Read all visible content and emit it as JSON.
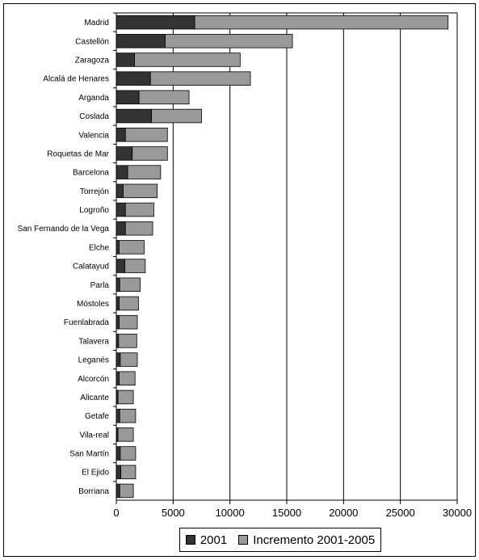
{
  "chart_data": {
    "type": "bar",
    "orientation": "horizontal",
    "stacked": true,
    "title": "",
    "xlabel": "",
    "ylabel": "",
    "xlim": [
      0,
      30000
    ],
    "x_ticks": [
      0,
      5000,
      10000,
      15000,
      20000,
      25000,
      30000
    ],
    "grid": "vertical major gridlines",
    "legend_position": "bottom",
    "categories": [
      "Madrid",
      "Castellón",
      "Zaragoza",
      "Alcalá de Henares",
      "Arganda",
      "Coslada",
      "Valencia",
      "Roquetas de Mar",
      "Barcelona",
      "Torrejón",
      "Logroño",
      "San Fernando de la Vega",
      "Elche",
      "Calatayud",
      "Parla",
      "Móstoles",
      "Fuenlabrada",
      "Talavera",
      "Leganés",
      "Alcorcón",
      "Alicante",
      "Getafe",
      "Vila-real",
      "San Martín",
      "El Ejido",
      "Borriana"
    ],
    "series": [
      {
        "name": "2001",
        "color": "#333333",
        "values": [
          6900,
          4300,
          1600,
          3000,
          2000,
          3100,
          800,
          1400,
          1000,
          600,
          800,
          800,
          250,
          750,
          300,
          250,
          250,
          200,
          350,
          250,
          150,
          300,
          150,
          350,
          400,
          300
        ]
      },
      {
        "name": "Incremento 2001-2005",
        "color": "#999999",
        "values": [
          22300,
          11200,
          9300,
          8800,
          4400,
          4400,
          3700,
          3100,
          2900,
          3000,
          2500,
          2400,
          2200,
          1800,
          1800,
          1700,
          1600,
          1600,
          1500,
          1400,
          1350,
          1400,
          1350,
          1350,
          1300,
          1200
        ]
      }
    ]
  },
  "legend": {
    "items": [
      {
        "label": "2001",
        "color": "#333333"
      },
      {
        "label": "Incremento 2001-2005",
        "color": "#999999"
      }
    ]
  }
}
